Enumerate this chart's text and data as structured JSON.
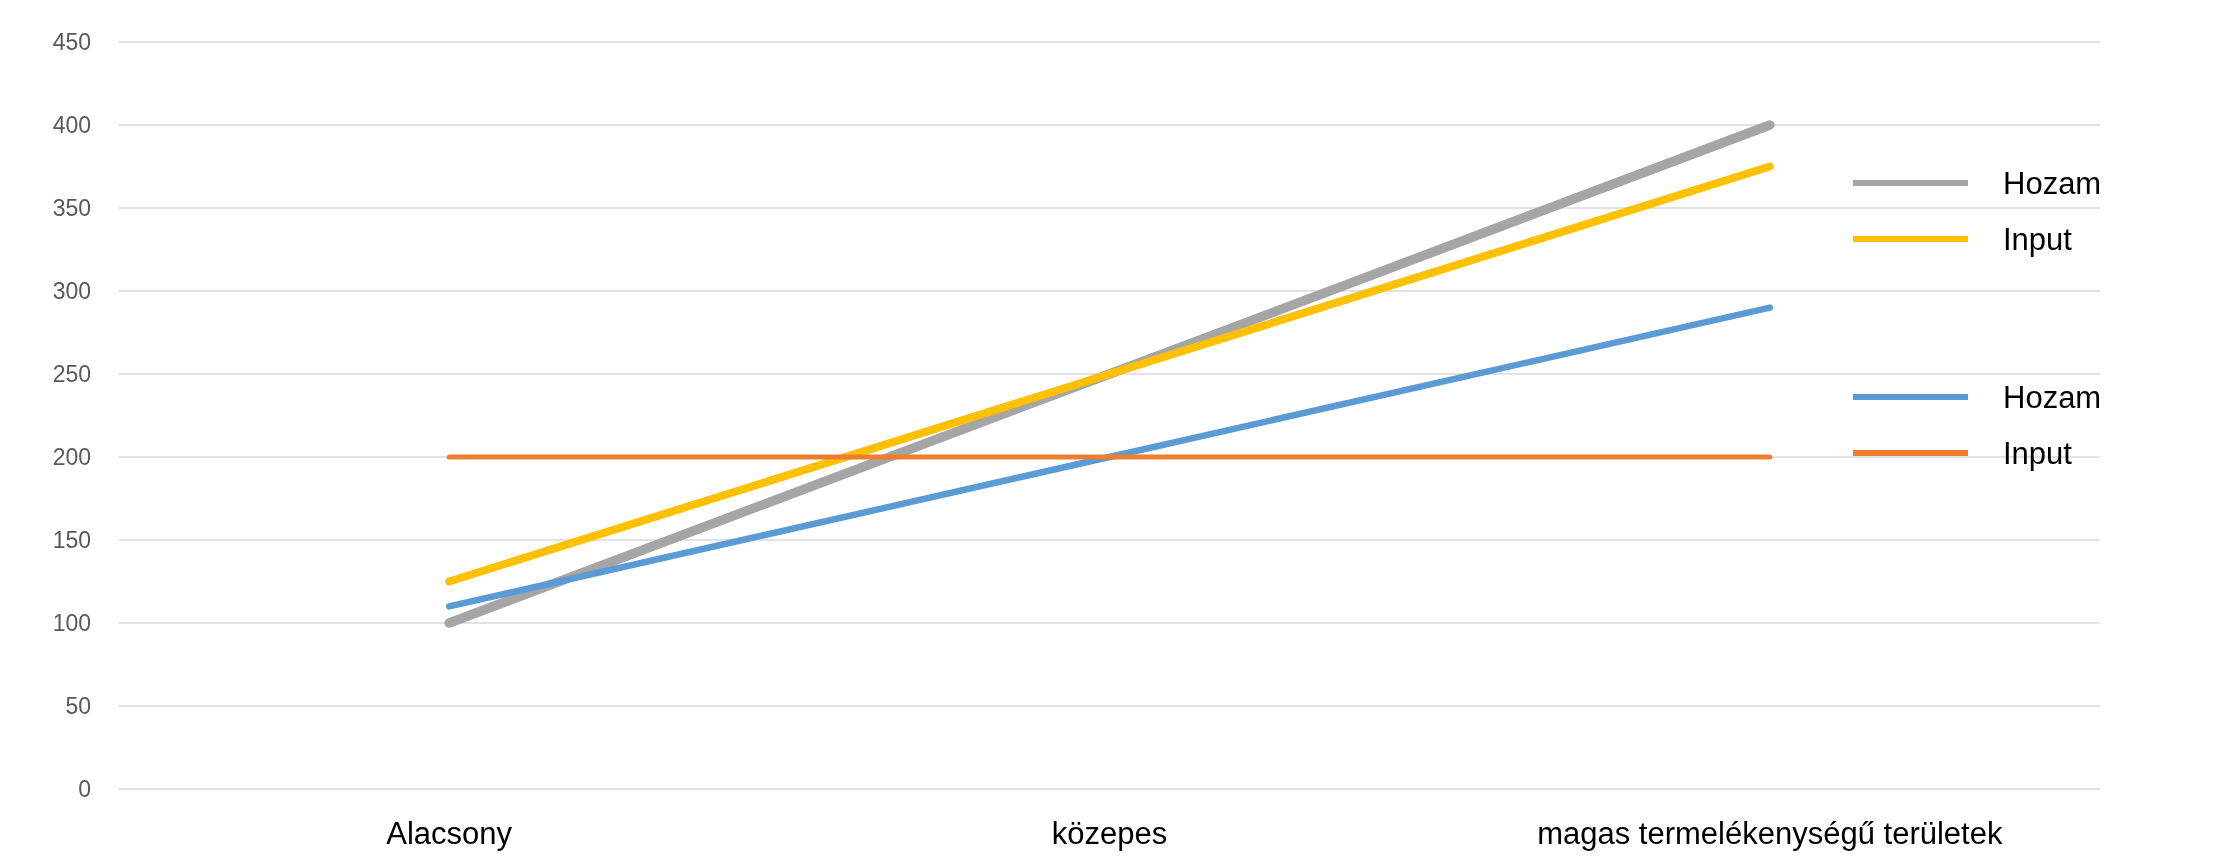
{
  "chart_data": {
    "type": "line",
    "categories": [
      "Alacsony",
      "közepes",
      "magas termelékenységű területek"
    ],
    "series": [
      {
        "name": "Hozam",
        "color": "#a5a5a5",
        "values": [
          100,
          250,
          400
        ]
      },
      {
        "name": "Input",
        "color": "#ffc000",
        "values": [
          125,
          250,
          375
        ]
      },
      {
        "name": "Hozam",
        "color": "#5b9bd5",
        "values": [
          110,
          200,
          290
        ]
      },
      {
        "name": "Input",
        "color": "#ed7d31",
        "values": [
          200,
          200,
          200
        ]
      }
    ],
    "ylim": [
      0,
      450
    ],
    "yticks": [
      0,
      50,
      100,
      150,
      200,
      250,
      300,
      350,
      400,
      450
    ],
    "grid": "y",
    "legend": "right",
    "marker": "none",
    "line_style": "solid"
  }
}
